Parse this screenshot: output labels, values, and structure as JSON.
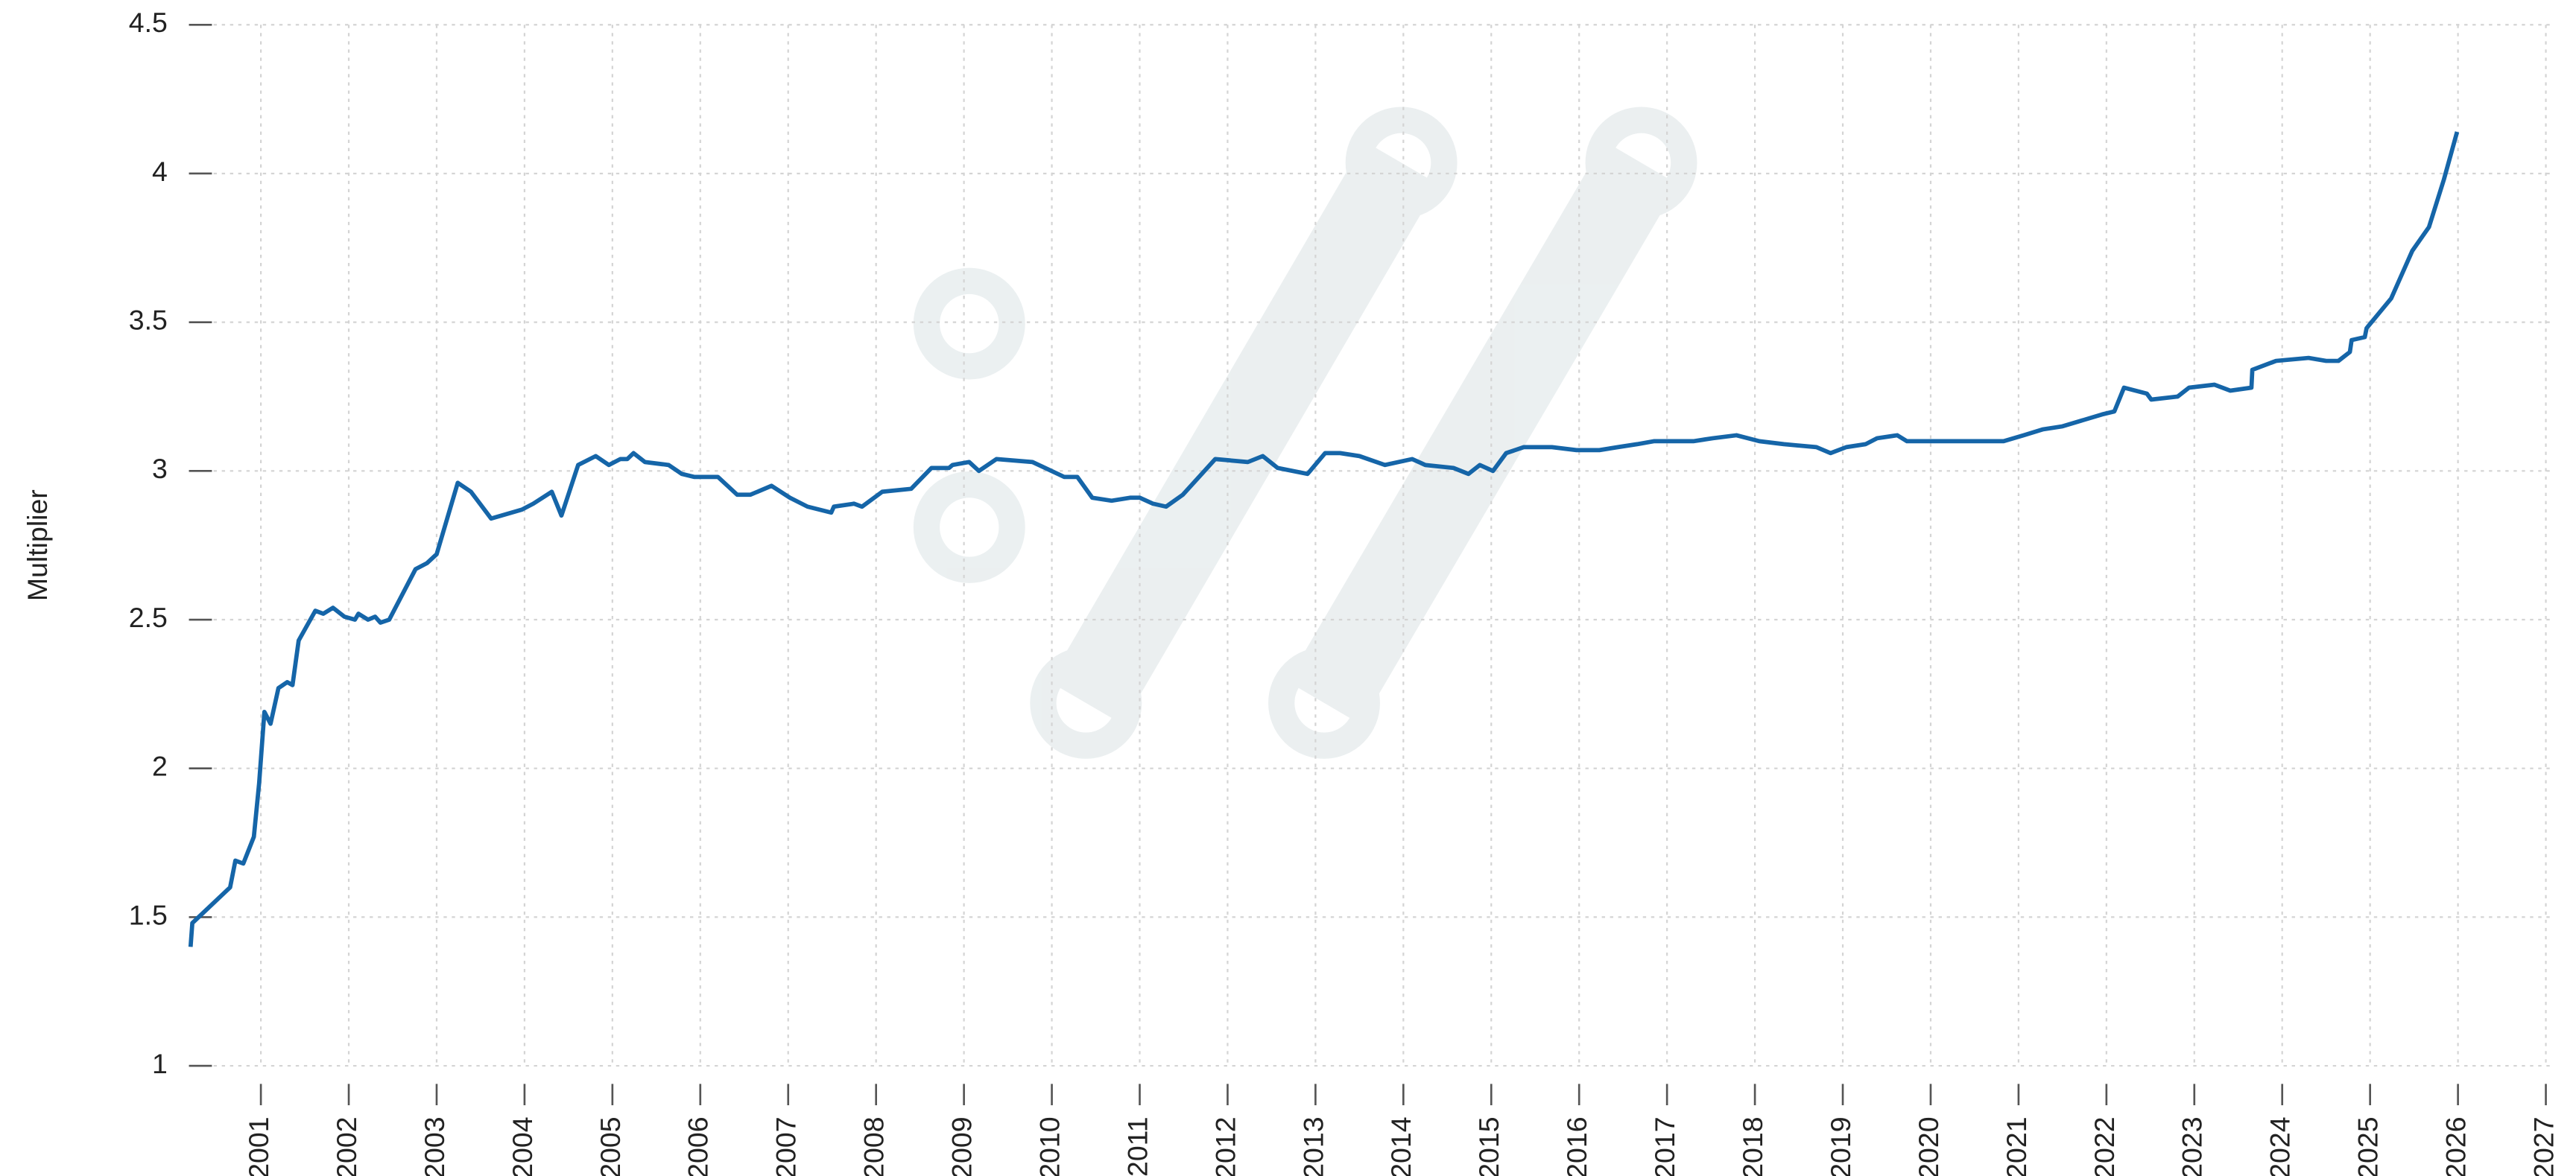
{
  "chart_data": {
    "type": "line",
    "y_label": "Multiplier",
    "xlim": [
      2000.2,
      2027.1
    ],
    "xticks": [
      2001,
      2002,
      2003,
      2004,
      2005,
      2006,
      2007,
      2008,
      2009,
      2010,
      2011,
      2012,
      2013,
      2014,
      2015,
      2016,
      2017,
      2018,
      2019,
      2020,
      2021,
      2022,
      2023,
      2024,
      2025,
      2026,
      2027
    ],
    "ylim": [
      1,
      4.5
    ],
    "yticks": [
      1,
      1.5,
      2,
      2.5,
      3,
      3.5,
      4,
      4.5
    ],
    "grid": true,
    "series": [
      {
        "name": "Multiplier",
        "color": "#1565a8",
        "x": [
          2000.2,
          2000.22,
          2000.65,
          2000.71,
          2000.8,
          2000.92,
          2000.98,
          2001.04,
          2001.11,
          2001.2,
          2001.3,
          2001.36,
          2001.43,
          2001.62,
          2001.71,
          2001.82,
          2001.95,
          2002.07,
          2002.11,
          2002.22,
          2002.3,
          2002.36,
          2002.46,
          2002.76,
          2002.89,
          2003.0,
          2003.24,
          2003.39,
          2003.62,
          2003.97,
          2004.1,
          2004.31,
          2004.42,
          2004.61,
          2004.81,
          2004.96,
          2005.09,
          2005.17,
          2005.24,
          2005.37,
          2005.64,
          2005.79,
          2005.93,
          2006.2,
          2006.42,
          2006.57,
          2006.81,
          2007.02,
          2007.22,
          2007.49,
          2007.52,
          2007.75,
          2007.84,
          2008.07,
          2008.4,
          2008.63,
          2008.83,
          2008.87,
          2009.06,
          2009.17,
          2009.37,
          2009.78,
          2010.14,
          2010.29,
          2010.46,
          2010.68,
          2010.89,
          2011.0,
          2011.15,
          2011.3,
          2011.49,
          2011.86,
          2012.23,
          2012.4,
          2012.57,
          2012.91,
          2013.11,
          2013.28,
          2013.5,
          2013.79,
          2014.1,
          2014.25,
          2014.57,
          2014.74,
          2014.87,
          2015.02,
          2015.17,
          2015.37,
          2015.69,
          2015.97,
          2016.23,
          2016.44,
          2016.66,
          2016.85,
          2017.09,
          2017.3,
          2017.52,
          2017.79,
          2018.05,
          2018.33,
          2018.7,
          2018.86,
          2019.04,
          2019.26,
          2019.39,
          2019.62,
          2019.73,
          2020.0,
          2020.3,
          2020.59,
          2020.83,
          2021.06,
          2021.28,
          2021.5,
          2021.95,
          2022.09,
          2022.2,
          2022.46,
          2022.51,
          2022.81,
          2022.94,
          2023.23,
          2023.41,
          2023.65,
          2023.66,
          2023.93,
          2024.3,
          2024.5,
          2024.64,
          2024.77,
          2024.79,
          2024.94,
          2024.96,
          2025.24,
          2025.48,
          2025.67,
          2025.84,
          2025.99
        ],
        "values": [
          1.4,
          1.48,
          1.6,
          1.69,
          1.68,
          1.77,
          1.95,
          2.19,
          2.15,
          2.27,
          2.29,
          2.28,
          2.43,
          2.53,
          2.52,
          2.54,
          2.51,
          2.5,
          2.52,
          2.5,
          2.51,
          2.49,
          2.5,
          2.67,
          2.69,
          2.72,
          2.96,
          2.93,
          2.84,
          2.87,
          2.89,
          2.93,
          2.85,
          3.02,
          3.05,
          3.02,
          3.04,
          3.04,
          3.06,
          3.03,
          3.02,
          2.99,
          2.98,
          2.98,
          2.92,
          2.92,
          2.95,
          2.91,
          2.88,
          2.86,
          2.88,
          2.89,
          2.88,
          2.93,
          2.94,
          3.01,
          3.01,
          3.02,
          3.03,
          3.0,
          3.04,
          3.03,
          2.98,
          2.98,
          2.91,
          2.9,
          2.91,
          2.91,
          2.89,
          2.88,
          2.92,
          3.04,
          3.03,
          3.05,
          3.01,
          2.99,
          3.06,
          3.06,
          3.05,
          3.02,
          3.04,
          3.02,
          3.01,
          2.99,
          3.02,
          3.0,
          3.06,
          3.08,
          3.08,
          3.07,
          3.07,
          3.08,
          3.09,
          3.1,
          3.1,
          3.1,
          3.11,
          3.12,
          3.1,
          3.09,
          3.08,
          3.06,
          3.08,
          3.09,
          3.11,
          3.12,
          3.1,
          3.1,
          3.1,
          3.1,
          3.1,
          3.12,
          3.14,
          3.15,
          3.19,
          3.2,
          3.28,
          3.26,
          3.24,
          3.25,
          3.28,
          3.29,
          3.27,
          3.28,
          3.34,
          3.37,
          3.38,
          3.37,
          3.37,
          3.4,
          3.44,
          3.45,
          3.48,
          3.58,
          3.74,
          3.82,
          3.98,
          4.14
        ]
      }
    ]
  }
}
